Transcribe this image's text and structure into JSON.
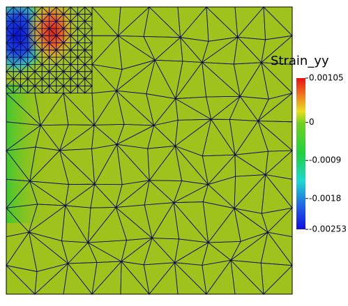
{
  "colorbar": {
    "title": "Strain_yy",
    "ticks": [
      0.00105,
      0,
      -0.0009,
      -0.0018,
      -0.00253
    ]
  }
}
